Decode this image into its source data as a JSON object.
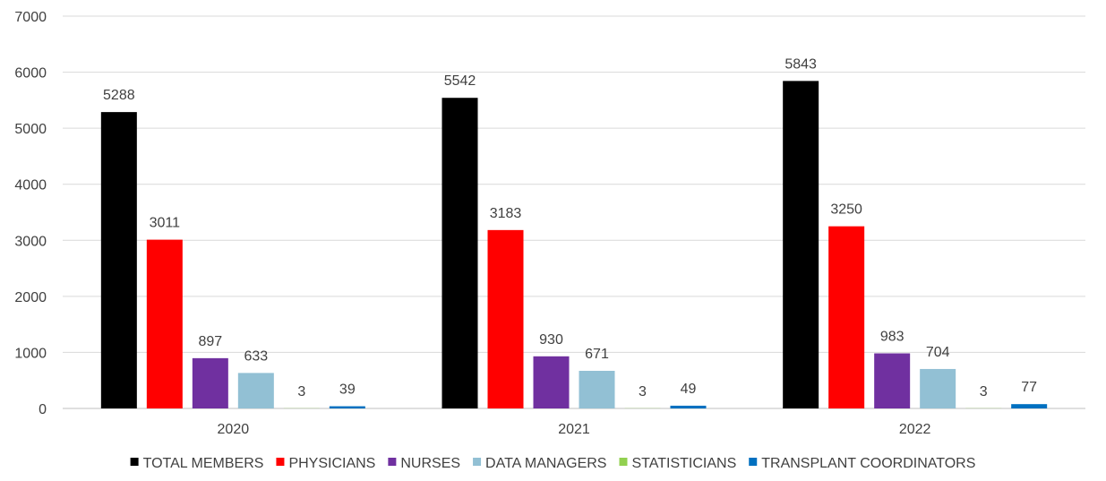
{
  "chart_data": {
    "type": "bar",
    "categories": [
      "2020",
      "2021",
      "2022"
    ],
    "series": [
      {
        "name": "TOTAL MEMBERS",
        "color": "#000000",
        "values": [
          5288,
          5542,
          5843
        ]
      },
      {
        "name": "PHYSICIANS",
        "color": "#ff0000",
        "values": [
          3011,
          3183,
          3250
        ]
      },
      {
        "name": "NURSES",
        "color": "#7030a0",
        "values": [
          897,
          930,
          983
        ]
      },
      {
        "name": "DATA MANAGERS",
        "color": "#92c0d4",
        "values": [
          633,
          671,
          704
        ]
      },
      {
        "name": "STATISTICIANS",
        "color": "#92d050",
        "values": [
          3,
          3,
          3
        ]
      },
      {
        "name": "TRANSPLANT COORDINATORS",
        "color": "#0070c0",
        "values": [
          39,
          49,
          77
        ]
      }
    ],
    "ylim": [
      0,
      7000
    ],
    "yticks": [
      0,
      1000,
      2000,
      3000,
      4000,
      5000,
      6000,
      7000
    ],
    "grid": true,
    "legend_position": "bottom"
  }
}
